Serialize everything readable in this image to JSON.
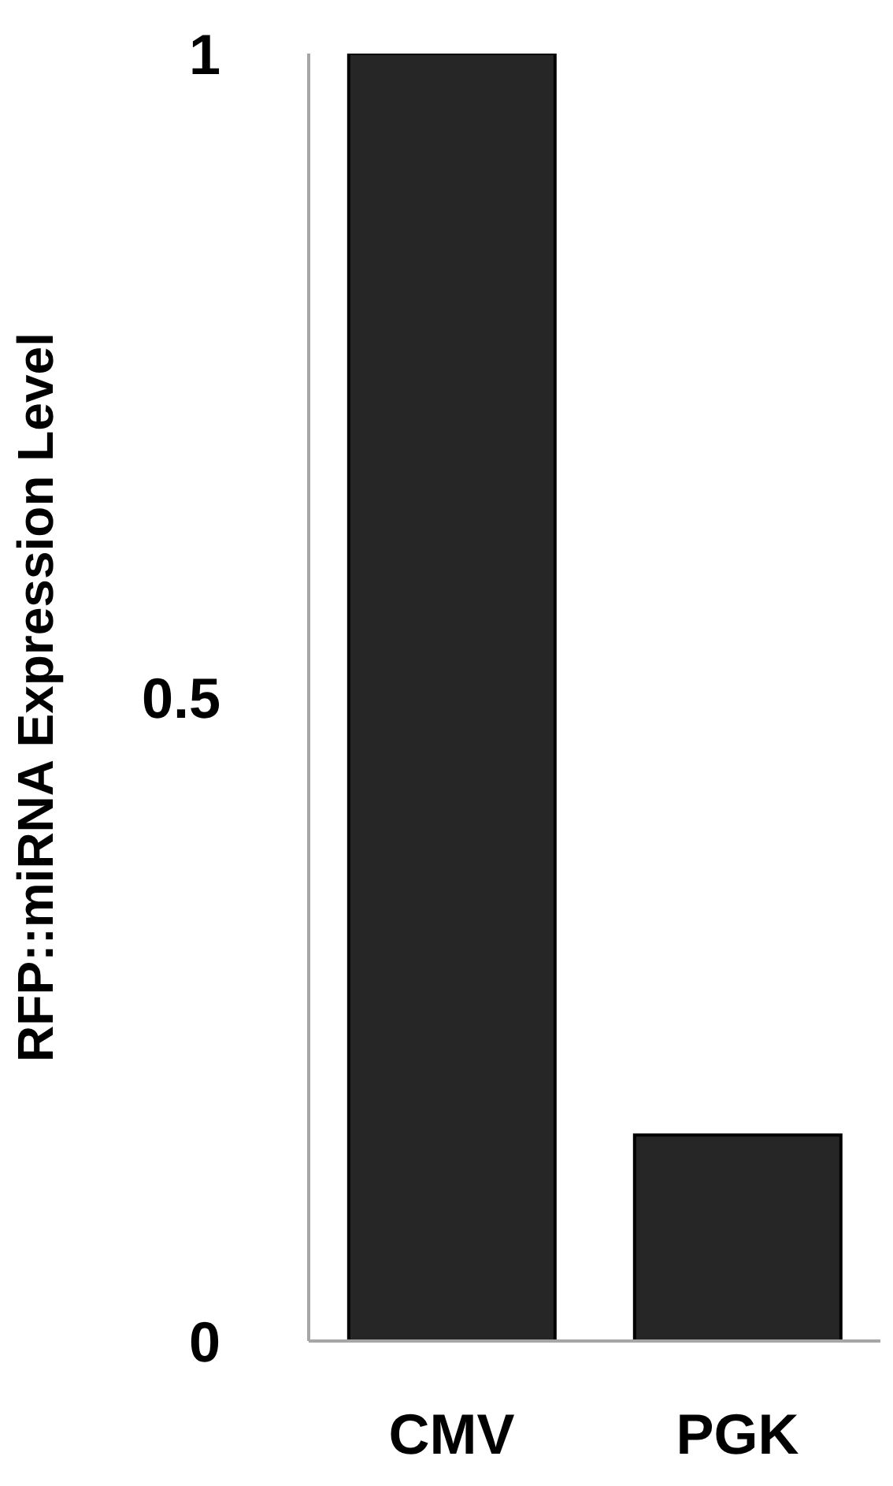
{
  "chart_data": {
    "type": "bar",
    "ylabel": "RFP::miRNA Expression Level",
    "categories": [
      "CMV",
      "PGK"
    ],
    "values": [
      1,
      0.16
    ],
    "color": "#262626",
    "ylim": [
      0,
      1
    ],
    "yticks": [
      0,
      0.5,
      1
    ],
    "grid": false,
    "legend": false
  }
}
